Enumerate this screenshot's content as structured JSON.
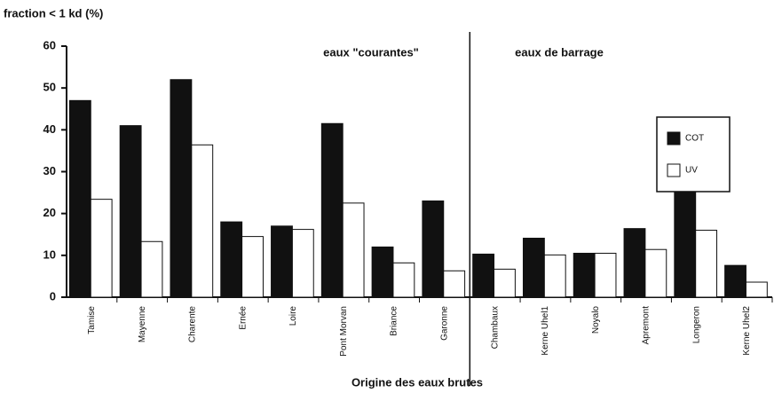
{
  "chart_data": {
    "type": "bar",
    "y_label": "fraction < 1 kd (%)",
    "x_label": "Origine des eaux brutes",
    "annotations": [
      "eaux \"courantes\"",
      "eaux de barrage"
    ],
    "categories": [
      "Tamise",
      "Mayenne",
      "Charente",
      "Ernée",
      "Loire",
      "Pont Morvan",
      "Briance",
      "Garonne",
      "Chambaux",
      "Kerne Uhel1",
      "Noyalo",
      "Apremont",
      "Longeron",
      "Kerne Uhel2"
    ],
    "series": [
      {
        "name": "COT",
        "color": "#111111",
        "values": [
          47,
          41,
          52,
          18,
          17,
          41.5,
          12,
          23,
          10.3,
          14.1,
          10.5,
          16.4,
          26.3,
          7.6
        ]
      },
      {
        "name": "UV",
        "color": "#ffffff",
        "values": [
          23.4,
          13.3,
          36.4,
          14.5,
          16.2,
          22.5,
          8.2,
          6.3,
          6.7,
          10.1,
          10.5,
          11.4,
          16,
          3.6
        ]
      }
    ],
    "ylim": [
      0,
      60
    ],
    "yticks": [
      0,
      10,
      20,
      30,
      40,
      50,
      60
    ]
  }
}
